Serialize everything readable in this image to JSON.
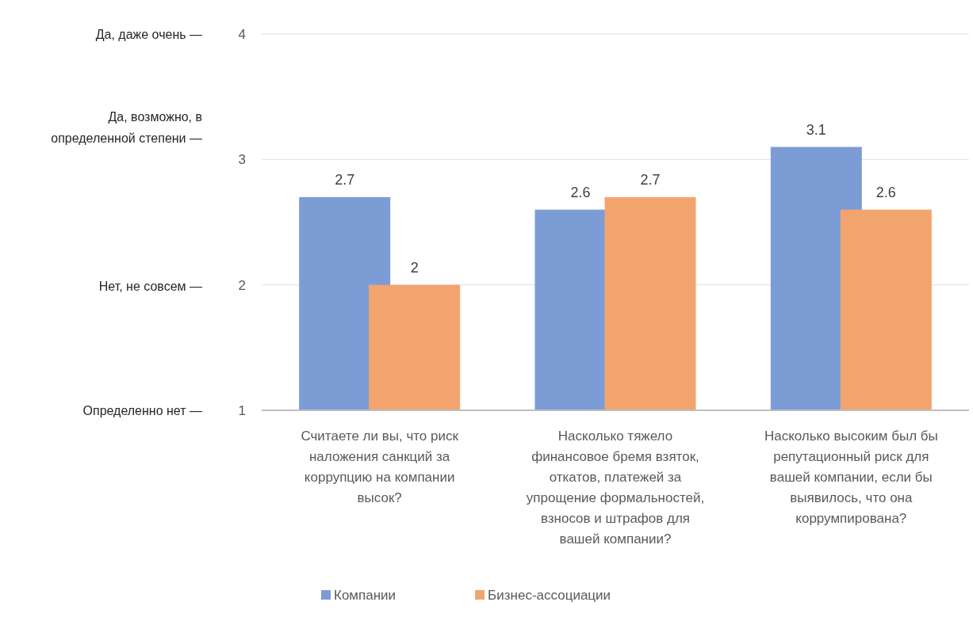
{
  "chart_data": {
    "type": "bar",
    "categories": [
      "Считаете ли вы, что риск наложения санкций за коррупцию на компании высок?",
      "Насколько тяжело финансовое бремя взяток, откатов, платежей за упрощение формальностей, взносов и штрафов для вашей компании?",
      "Насколько высоким был бы репутационный риск для вашей компании, если бы выявилось, что она коррумпирована?"
    ],
    "series": [
      {
        "name": "Компании",
        "color": "#7c9cd6",
        "values": [
          2.7,
          2.6,
          3.1
        ]
      },
      {
        "name": "Бизнес-ассоциации",
        "color": "#f2a46f",
        "values": [
          2,
          2.7,
          2.6
        ]
      }
    ],
    "ylim": [
      1,
      4
    ],
    "yticks": [
      1,
      2,
      3,
      4
    ],
    "grid": "y",
    "legend": "bottom",
    "data_labels": true,
    "annotations": [
      "Да, даже очень —",
      "Да, возможно, в определенной степени —",
      "Нет, не совсем —",
      "Определенно нет —"
    ]
  }
}
